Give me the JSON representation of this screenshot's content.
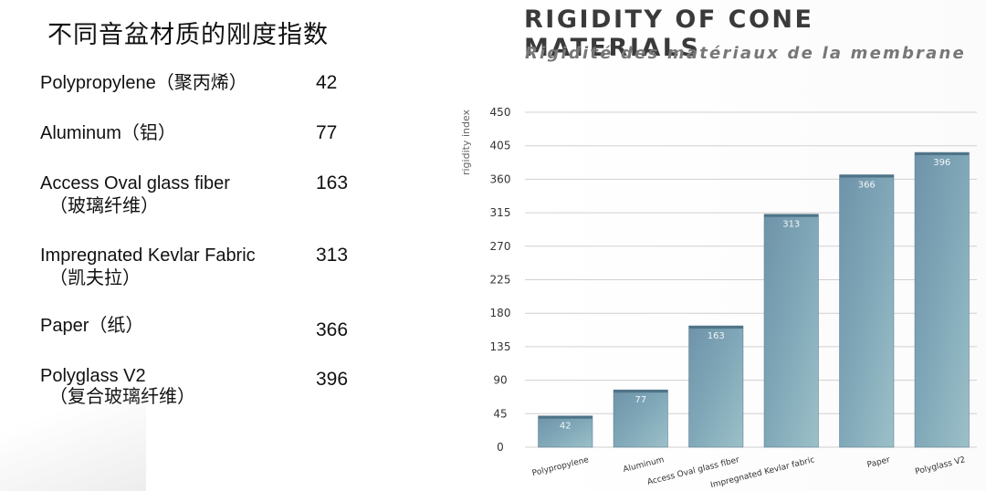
{
  "left_panel": {
    "title": "不同音盆材质的刚度指数",
    "materials": [
      {
        "name": "Polypropylene（聚丙烯）",
        "zh": "",
        "value": "42"
      },
      {
        "name": "Aluminum（铝）",
        "zh": "",
        "value": "77"
      },
      {
        "name": "Access Oval glass fiber",
        "zh": "（玻璃纤维）",
        "value": "163"
      },
      {
        "name": "Impregnated Kevlar Fabric",
        "zh": "（凯夫拉）",
        "value": "313"
      },
      {
        "name": "Paper（纸）",
        "zh": "",
        "value": "366"
      },
      {
        "name": "Polyglass V2",
        "zh": "（复合玻璃纤维）",
        "value": "396"
      }
    ]
  },
  "chart_data": {
    "type": "bar",
    "title": "RIGIDITY OF CONE MATERIALS",
    "subtitle": "Rigidité des matériaux de la membrane",
    "ylabel": "rigidity index",
    "xlabel": "",
    "categories": [
      "Polypropylene",
      "Aluminum",
      "Access Oval glass fiber",
      "Impregnated Kevlar fabric",
      "Paper",
      "Polyglass V2"
    ],
    "values": [
      42,
      77,
      163,
      313,
      366,
      396
    ],
    "data_labels": [
      "42",
      "77",
      "163",
      "313",
      "366",
      "396"
    ],
    "ylim": [
      0,
      450
    ],
    "yticks": [
      "0",
      "45",
      "90",
      "135",
      "180",
      "225",
      "270",
      "315",
      "360",
      "405",
      "450"
    ],
    "grid": true,
    "legend": "none",
    "bar_color": "#6f97ad"
  }
}
